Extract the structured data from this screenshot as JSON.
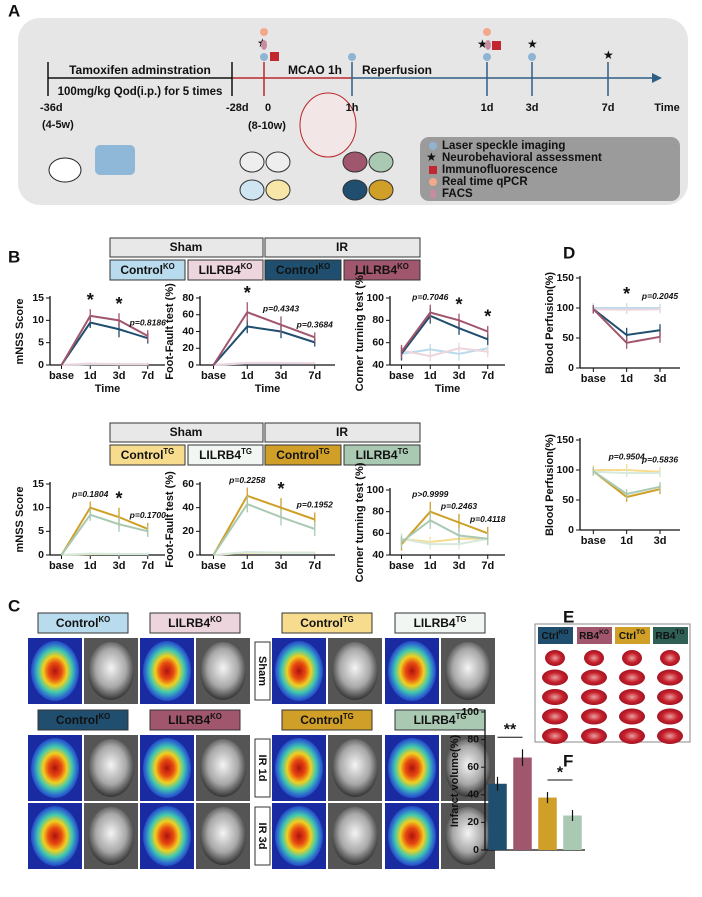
{
  "panel_labels": [
    "A",
    "B",
    "C",
    "D",
    "E",
    "F"
  ],
  "timeline": {
    "tamoxifen": "Tamoxifen adminstration",
    "dose": "100mg/kg Qod(i.p.) for 5 times",
    "start": "-36d",
    "start_age": "(4-5w)",
    "pre": "-28d",
    "zero": "0",
    "zero_age": "(8-10w)",
    "mcao": "MCAO 1h",
    "reperfusion": "Reperfusion",
    "points": [
      "1h",
      "1d",
      "3d",
      "7d"
    ],
    "axis": "Time"
  },
  "legend_A": [
    "Laser speckle imaging",
    "Neurobehavioral assessment",
    "Immunofluorescence",
    "Real time qPCR",
    "FACS"
  ],
  "groups_B": [
    {
      "sham": "Sham",
      "ir": "IR",
      "colors": [
        "#b9dbee",
        "#ecd5dc",
        "#1f4e6e",
        "#a0566c"
      ],
      "labels": [
        {
          "main": "Control",
          "sup": "KO"
        },
        {
          "main": "LILRB4",
          "sup": "KO"
        },
        {
          "main": "Control",
          "sup": "KO"
        },
        {
          "main": "LILRB4",
          "sup": "KO"
        }
      ]
    },
    {
      "sham": "Sham",
      "ir": "IR",
      "colors": [
        "#f7dc8e",
        "#f1f6f2",
        "#cf9f27",
        "#a9c9b3"
      ],
      "labels": [
        {
          "main": "Control",
          "sup": "TG"
        },
        {
          "main": "LILRB4",
          "sup": "TG"
        },
        {
          "main": "Control",
          "sup": "TG"
        },
        {
          "main": "LILRB4",
          "sup": "TG"
        }
      ]
    }
  ],
  "panel_C": {
    "sham_headers": [
      {
        "main": "Control",
        "sup": "KO"
      },
      {
        "main": "LILRB4",
        "sup": "KO"
      },
      {
        "main": "Control",
        "sup": "TG"
      },
      {
        "main": "LILRB4",
        "sup": "TG"
      }
    ],
    "ir_headers": [
      {
        "main": "Control",
        "sup": "KO"
      },
      {
        "main": "LILRB4",
        "sup": "KO"
      },
      {
        "main": "Control",
        "sup": "TG"
      },
      {
        "main": "LILRB4",
        "sup": "TG"
      }
    ],
    "rows": [
      "Sham",
      "IR 1d",
      "IR 3d"
    ]
  },
  "panel_E": {
    "headers": [
      {
        "main": "Ctrl",
        "sup": "KO"
      },
      {
        "main": "RB4",
        "sup": "KO"
      },
      {
        "main": "Ctrl",
        "sup": "TG"
      },
      {
        "main": "RB4",
        "sup": "TG"
      }
    ]
  },
  "chart_data": [
    {
      "type": "line",
      "ylabel": "mNSS Score",
      "xlabel": "Time",
      "categories": [
        "base",
        "1d",
        "3d",
        "7d"
      ],
      "ylim": [
        0,
        15
      ],
      "yticks": [
        0,
        5,
        10,
        15
      ],
      "annotations": [
        "*",
        "*",
        "p=0.8186"
      ],
      "series": [
        {
          "color": "#b9dbee",
          "values": [
            0,
            0.2,
            0.2,
            0.2
          ],
          "errors": [
            0,
            0.3,
            0.3,
            0.3
          ]
        },
        {
          "color": "#ecd5dc",
          "values": [
            0,
            0.3,
            0.2,
            0.2
          ],
          "errors": [
            0,
            0.3,
            0.3,
            0.3
          ]
        },
        {
          "color": "#1f4e6e",
          "values": [
            0,
            9.5,
            8,
            6
          ],
          "errors": [
            0,
            1.2,
            1.8,
            1.2
          ]
        },
        {
          "color": "#a0566c",
          "values": [
            0,
            11,
            10,
            6.5
          ],
          "errors": [
            0,
            1.5,
            1.6,
            1.3
          ]
        }
      ]
    },
    {
      "type": "line",
      "ylabel": "Foot-Fault test (%)",
      "xlabel": "Time",
      "categories": [
        "base",
        "1d",
        "3d",
        "7d"
      ],
      "ylim": [
        0,
        80
      ],
      "yticks": [
        0,
        20,
        40,
        60,
        80
      ],
      "annotations": [
        "*",
        "p=0.4343",
        "p=0.3684"
      ],
      "series": [
        {
          "color": "#b9dbee",
          "values": [
            0,
            2,
            2,
            2
          ],
          "errors": [
            0,
            1,
            1,
            1
          ]
        },
        {
          "color": "#ecd5dc",
          "values": [
            0,
            2.5,
            2.5,
            2
          ],
          "errors": [
            0,
            1,
            1,
            1
          ]
        },
        {
          "color": "#1f4e6e",
          "values": [
            0,
            46,
            40,
            27
          ],
          "errors": [
            0,
            8,
            8,
            5
          ]
        },
        {
          "color": "#a0566c",
          "values": [
            0,
            63,
            48,
            33
          ],
          "errors": [
            0,
            12,
            10,
            6
          ]
        }
      ]
    },
    {
      "type": "line",
      "ylabel": "Corner turning test (%)",
      "xlabel": "Time",
      "categories": [
        "base",
        "1d",
        "3d",
        "7d"
      ],
      "ylim": [
        40,
        100
      ],
      "yticks": [
        40,
        60,
        80,
        100
      ],
      "annotations": [
        "p=0.7046",
        "*",
        "*"
      ],
      "series": [
        {
          "color": "#b9dbee",
          "values": [
            50,
            54,
            50,
            55
          ],
          "errors": [
            5,
            5,
            6,
            5
          ]
        },
        {
          "color": "#ecd5dc",
          "values": [
            53,
            48,
            55,
            52
          ],
          "errors": [
            5,
            5,
            5,
            5
          ]
        },
        {
          "color": "#1f4e6e",
          "values": [
            50,
            84,
            73,
            63
          ],
          "errors": [
            6,
            7,
            6,
            5
          ]
        },
        {
          "color": "#a0566c",
          "values": [
            52,
            87,
            80,
            70
          ],
          "errors": [
            6,
            7,
            6,
            5
          ]
        }
      ]
    },
    {
      "type": "line",
      "ylabel": "mNSS Score",
      "categories": [
        "base",
        "1d",
        "3d",
        "7d"
      ],
      "ylim": [
        0,
        15
      ],
      "yticks": [
        0,
        5,
        10,
        15
      ],
      "annotations": [
        "p=0.1804",
        "*",
        "p=0.1700"
      ],
      "series": [
        {
          "color": "#f7dc8e",
          "values": [
            0,
            0.2,
            0.2,
            0.2
          ],
          "errors": [
            0,
            0.3,
            0.3,
            0.3
          ]
        },
        {
          "color": "#d6e9dc",
          "values": [
            0,
            0.3,
            0.2,
            0.2
          ],
          "errors": [
            0,
            0.3,
            0.3,
            0.3
          ]
        },
        {
          "color": "#cf9f27",
          "values": [
            0,
            10,
            8,
            5.5
          ],
          "errors": [
            0,
            1.3,
            2,
            1.3
          ]
        },
        {
          "color": "#a9c9b3",
          "values": [
            0,
            8.5,
            6.5,
            5
          ],
          "errors": [
            0,
            1.3,
            1.6,
            1.2
          ]
        }
      ]
    },
    {
      "type": "line",
      "ylabel": "Foot-Fault test (%)",
      "categories": [
        "base",
        "1d",
        "3d",
        "7d"
      ],
      "ylim": [
        0,
        60
      ],
      "yticks": [
        0,
        20,
        40,
        60
      ],
      "annotations": [
        "p=0.2258",
        "*",
        "p=0.1952"
      ],
      "series": [
        {
          "color": "#f7dc8e",
          "values": [
            0,
            2,
            2,
            2
          ],
          "errors": [
            0,
            1,
            1,
            1
          ]
        },
        {
          "color": "#d6e9dc",
          "values": [
            0,
            2.5,
            2,
            2
          ],
          "errors": [
            0,
            1,
            1,
            1
          ]
        },
        {
          "color": "#cf9f27",
          "values": [
            0,
            50,
            40,
            30
          ],
          "errors": [
            0,
            7,
            8,
            6
          ]
        },
        {
          "color": "#a9c9b3",
          "values": [
            0,
            43,
            32,
            22
          ],
          "errors": [
            0,
            7,
            7,
            6
          ]
        }
      ]
    },
    {
      "type": "line",
      "ylabel": "Corner turning test (%)",
      "categories": [
        "base",
        "1d",
        "3d",
        "7d"
      ],
      "ylim": [
        40,
        100
      ],
      "yticks": [
        40,
        60,
        80,
        100
      ],
      "annotations": [
        "p>0.9999",
        "p=0.2463",
        "p=0.4118"
      ],
      "series": [
        {
          "color": "#f7dc8e",
          "values": [
            55,
            52,
            55,
            55
          ],
          "errors": [
            5,
            5,
            5,
            5
          ]
        },
        {
          "color": "#d6e9dc",
          "values": [
            55,
            50,
            50,
            55
          ],
          "errors": [
            5,
            5,
            5,
            5
          ]
        },
        {
          "color": "#cf9f27",
          "values": [
            50,
            80,
            70,
            60
          ],
          "errors": [
            6,
            9,
            8,
            6
          ]
        },
        {
          "color": "#a9c9b3",
          "values": [
            52,
            72,
            58,
            55
          ],
          "errors": [
            6,
            8,
            7,
            6
          ]
        }
      ]
    },
    {
      "type": "line",
      "ylabel": "Blood Perfusion(%)",
      "categories": [
        "base",
        "1d",
        "3d"
      ],
      "ylim": [
        0,
        150
      ],
      "yticks": [
        0,
        50,
        100,
        150
      ],
      "annotations": [
        "*",
        "p=0.2045"
      ],
      "series": [
        {
          "color": "#b9dbee",
          "values": [
            100,
            100,
            100
          ],
          "errors": [
            8,
            8,
            7
          ]
        },
        {
          "color": "#ecd5dc",
          "values": [
            98,
            97,
            98
          ],
          "errors": [
            7,
            7,
            7
          ]
        },
        {
          "color": "#1f4e6e",
          "values": [
            98,
            55,
            63
          ],
          "errors": [
            7,
            12,
            10
          ]
        },
        {
          "color": "#a0566c",
          "values": [
            98,
            42,
            52
          ],
          "errors": [
            7,
            10,
            10
          ]
        }
      ]
    },
    {
      "type": "line",
      "ylabel": "Blood Perfusion(%)",
      "categories": [
        "base",
        "1d",
        "3d"
      ],
      "ylim": [
        0,
        150
      ],
      "yticks": [
        0,
        50,
        100,
        150
      ],
      "annotations": [
        "p=0.9504",
        "p=0.5836"
      ],
      "series": [
        {
          "color": "#f7dc8e",
          "values": [
            100,
            100,
            97
          ],
          "errors": [
            8,
            10,
            8
          ]
        },
        {
          "color": "#d6e9dc",
          "values": [
            97,
            95,
            95
          ],
          "errors": [
            7,
            7,
            7
          ]
        },
        {
          "color": "#cf9f27",
          "values": [
            98,
            55,
            68
          ],
          "errors": [
            7,
            8,
            8
          ]
        },
        {
          "color": "#a9c9b3",
          "values": [
            98,
            60,
            72
          ],
          "errors": [
            7,
            8,
            8
          ]
        }
      ]
    },
    {
      "type": "bar",
      "ylabel": "Infarct volume(%)",
      "ylim": [
        0,
        100
      ],
      "yticks": [
        0,
        20,
        40,
        60,
        80,
        100
      ],
      "values": [
        48,
        67,
        38,
        25
      ],
      "errors": [
        5,
        6,
        4,
        4
      ],
      "colors": [
        "#1f4e6e",
        "#a0566c",
        "#cf9f27",
        "#a9c9b3"
      ],
      "annotations": [
        "**",
        "*"
      ]
    }
  ]
}
